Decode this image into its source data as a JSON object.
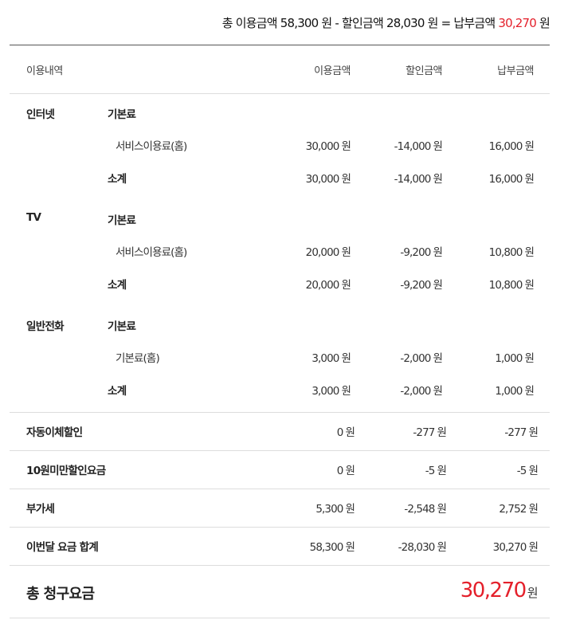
{
  "summary": {
    "prefix": "총 이용금액",
    "usage": "58,300",
    "won": "원",
    "minus": "-",
    "discount_label": "할인금액",
    "discount": "28,030",
    "equals": "=",
    "pay_label": "납부금액",
    "pay": "30,270"
  },
  "header": {
    "item": "이용내역",
    "usage": "이용금액",
    "discount": "할인금액",
    "payment": "납부금액"
  },
  "currency": "원",
  "groups": [
    {
      "name": "인터넷",
      "category": "기본료",
      "item": "서비스이용료(홈)",
      "values": [
        "30,000",
        "-14,000",
        "16,000"
      ],
      "subtotal_label": "소계",
      "subtotal": [
        "30,000",
        "-14,000",
        "16,000"
      ]
    },
    {
      "name": "TV",
      "category": "기본료",
      "item": "서비스이용료(홈)",
      "values": [
        "20,000",
        "-9,200",
        "10,800"
      ],
      "subtotal_label": "소계",
      "subtotal": [
        "20,000",
        "-9,200",
        "10,800"
      ]
    },
    {
      "name": "일반전화",
      "category": "기본료",
      "item": "기본료(홈)",
      "values": [
        "3,000",
        "-2,000",
        "1,000"
      ],
      "subtotal_label": "소계",
      "subtotal": [
        "3,000",
        "-2,000",
        "1,000"
      ]
    }
  ],
  "rows": [
    {
      "label": "자동이체할인",
      "values": [
        "0",
        "-277",
        "-277"
      ]
    },
    {
      "label": "10원미만할인요금",
      "values": [
        "0",
        "-5",
        "-5"
      ]
    },
    {
      "label": "부가세",
      "values": [
        "5,300",
        "-2,548",
        "2,752"
      ]
    },
    {
      "label": "이번달 요금 합계",
      "values": [
        "58,300",
        "-28,030",
        "30,270"
      ]
    }
  ],
  "total": {
    "label": "총 청구요금",
    "value": "30,270"
  },
  "colors": {
    "accent": "#e4202b"
  }
}
